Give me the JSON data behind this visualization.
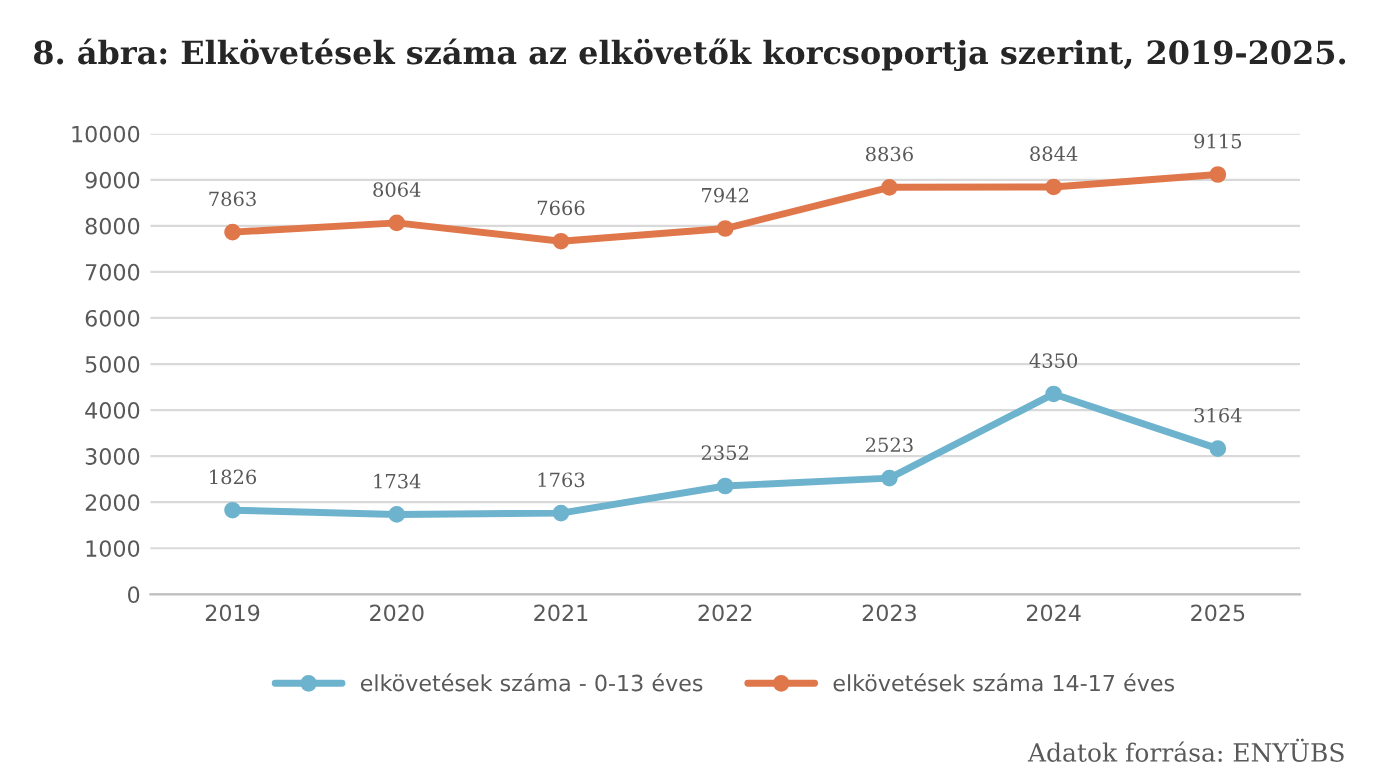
{
  "chart_data": {
    "type": "line",
    "title": "8. ábra: Elkövetések száma az elkövetők korcsoportja szerint, 2019-2025.",
    "categories": [
      "2019",
      "2020",
      "2021",
      "2022",
      "2023",
      "2024",
      "2025"
    ],
    "series": [
      {
        "name": "elkövetések száma - 0-13 éves",
        "color": "#6db3ce",
        "values": [
          1826,
          1734,
          1763,
          2352,
          2523,
          4350,
          3164
        ]
      },
      {
        "name": "elkövetések száma 14-17 éves",
        "color": "#e0774a",
        "values": [
          7863,
          8064,
          7666,
          7942,
          8836,
          8844,
          9115
        ]
      }
    ],
    "ylim": [
      0,
      10000
    ],
    "yticks": [
      0,
      1000,
      2000,
      3000,
      4000,
      5000,
      6000,
      7000,
      8000,
      9000,
      10000
    ],
    "grid": "y",
    "legend": "bottom",
    "marker": "circle",
    "line_style": "solid",
    "data_labels": true,
    "annotations": [
      "Adatok forrása: ENYÜBS"
    ]
  }
}
